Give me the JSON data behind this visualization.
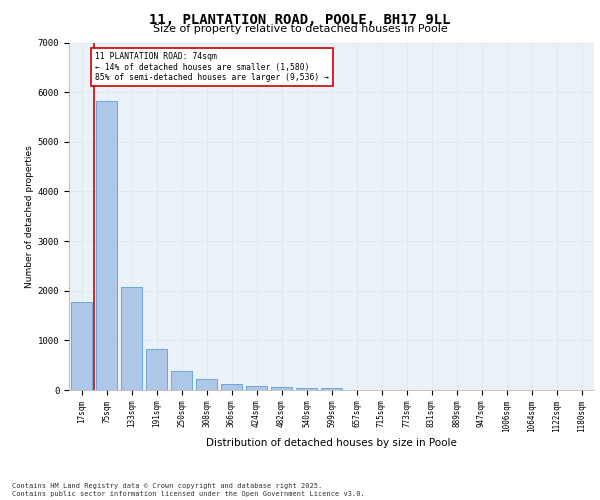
{
  "title_line1": "11, PLANTATION ROAD, POOLE, BH17 9LL",
  "title_line2": "Size of property relative to detached houses in Poole",
  "xlabel": "Distribution of detached houses by size in Poole",
  "ylabel": "Number of detached properties",
  "categories": [
    "17sqm",
    "75sqm",
    "133sqm",
    "191sqm",
    "250sqm",
    "308sqm",
    "366sqm",
    "424sqm",
    "482sqm",
    "540sqm",
    "599sqm",
    "657sqm",
    "715sqm",
    "773sqm",
    "831sqm",
    "889sqm",
    "947sqm",
    "1006sqm",
    "1064sqm",
    "1122sqm",
    "1180sqm"
  ],
  "values": [
    1780,
    5820,
    2080,
    820,
    380,
    220,
    130,
    90,
    70,
    50,
    50,
    0,
    0,
    0,
    0,
    0,
    0,
    0,
    0,
    0,
    0
  ],
  "bar_color": "#aec6e8",
  "bar_edge_color": "#5a9fd4",
  "marker_color": "#cc0000",
  "annotation_title": "11 PLANTATION ROAD: 74sqm",
  "annotation_line1": "← 14% of detached houses are smaller (1,580)",
  "annotation_line2": "85% of semi-detached houses are larger (9,536) →",
  "annotation_box_color": "#cc0000",
  "ylim": [
    0,
    7000
  ],
  "yticks": [
    0,
    1000,
    2000,
    3000,
    4000,
    5000,
    6000,
    7000
  ],
  "grid_color": "#dde8f0",
  "bg_color": "#eaf2f8",
  "footer_line1": "Contains HM Land Registry data © Crown copyright and database right 2025.",
  "footer_line2": "Contains public sector information licensed under the Open Government Licence v3.0."
}
